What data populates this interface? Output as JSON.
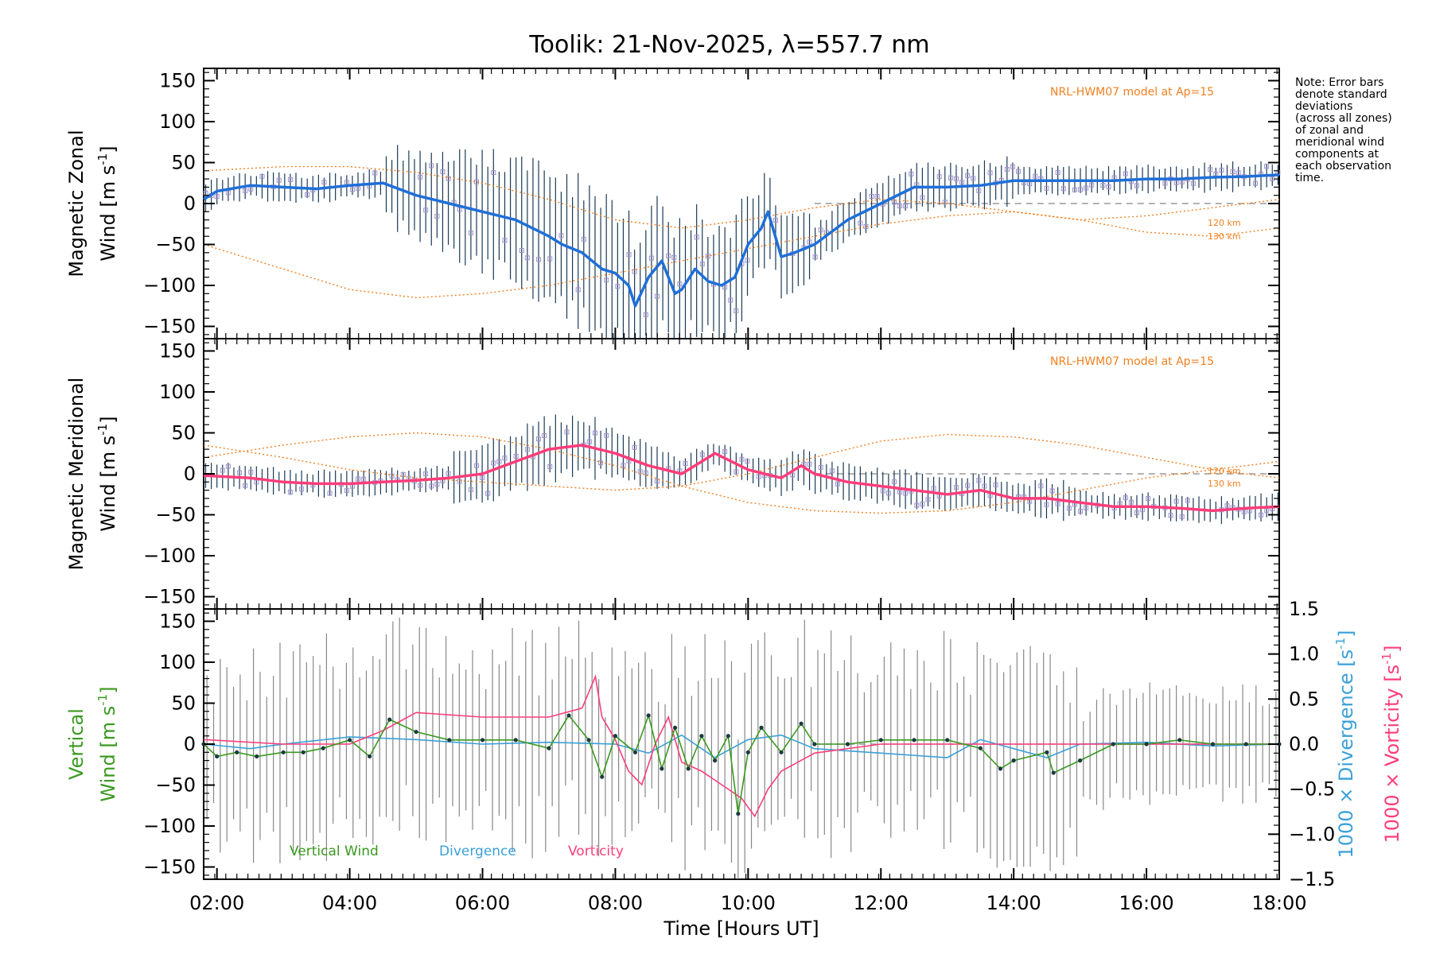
{
  "chart_data": {
    "type": "line",
    "title": "Toolik: 21-Nov-2025, λ=557.7 nm",
    "xlabel": "Time [Hours UT]",
    "x_ticks": [
      "02:00",
      "04:00",
      "06:00",
      "08:00",
      "10:00",
      "12:00",
      "14:00",
      "16:00",
      "18:00"
    ],
    "xlim": [
      1.8,
      18.0
    ],
    "note_lines": [
      "Note: Error bars",
      "denote standard",
      "deviations",
      "(across all zones)",
      "of zonal and",
      "meridional wind",
      "components at",
      "each observation",
      "time."
    ],
    "colors": {
      "zonal": "#1f6fd8",
      "meridional": "#ff3d7a",
      "vertical": "#3a9a20",
      "divergence": "#3aa0d8",
      "vorticity": "#ff3d7a",
      "model": "#f08020",
      "errorbar": "#1a3a55",
      "scatter": "#a090d0",
      "grey": "#888888"
    },
    "panels": [
      {
        "id": "zonal",
        "ylabel_line1": "Magnetic Zonal",
        "ylabel_line2": "Wind [m s",
        "ylabel_sup": "-1",
        "ylabel_close": "]",
        "ylim": [
          -165,
          165
        ],
        "y_ticks": [
          "150",
          "100",
          "50",
          "0",
          "−50",
          "−100",
          "−150"
        ],
        "model_label": "NRL-HWM07 model at Ap=15",
        "alt_labels": [
          "120 km",
          "130 km"
        ],
        "series": [
          {
            "name": "Zonal wind (mean)",
            "x": [
              1.8,
              2.0,
              2.5,
              3.0,
              3.5,
              4.0,
              4.5,
              5.0,
              5.5,
              6.0,
              6.5,
              7.0,
              7.2,
              7.5,
              7.8,
              8.0,
              8.2,
              8.3,
              8.5,
              8.7,
              8.9,
              9.0,
              9.2,
              9.4,
              9.6,
              9.8,
              10.0,
              10.2,
              10.3,
              10.5,
              10.7,
              11.0,
              11.5,
              12.0,
              12.5,
              13.0,
              13.5,
              14.0,
              14.5,
              15.0,
              15.5,
              16.0,
              16.5,
              17.0,
              17.5,
              18.0
            ],
            "values": [
              5,
              15,
              22,
              20,
              18,
              22,
              25,
              10,
              0,
              -10,
              -20,
              -40,
              -50,
              -60,
              -80,
              -85,
              -100,
              -125,
              -90,
              -70,
              -110,
              -105,
              -80,
              -95,
              -100,
              -90,
              -50,
              -30,
              -10,
              -65,
              -60,
              -50,
              -20,
              0,
              20,
              20,
              22,
              28,
              28,
              28,
              28,
              30,
              30,
              32,
              33,
              35
            ]
          },
          {
            "name": "Model 120 km",
            "x": [
              1.8,
              3.0,
              4.0,
              5.0,
              6.0,
              7.0,
              8.0,
              9.0,
              10.0,
              11.0,
              12.0,
              13.0,
              14.0,
              15.0,
              16.0,
              17.0,
              18.0
            ],
            "values": [
              40,
              45,
              45,
              38,
              25,
              5,
              -20,
              -30,
              -20,
              -5,
              5,
              0,
              -10,
              -20,
              -15,
              -5,
              5
            ]
          },
          {
            "name": "Model 130 km",
            "x": [
              1.8,
              3.0,
              4.0,
              5.0,
              6.0,
              7.0,
              8.0,
              9.0,
              10.0,
              11.0,
              12.0,
              13.0,
              14.0,
              15.0,
              16.0,
              17.0,
              18.0
            ],
            "values": [
              -50,
              -80,
              -105,
              -115,
              -110,
              -100,
              -85,
              -70,
              -55,
              -40,
              -25,
              -15,
              -10,
              -20,
              -35,
              -40,
              -30
            ]
          }
        ]
      },
      {
        "id": "meridional",
        "ylabel_line1": "Magnetic Meridional",
        "ylabel_line2": "Wind [m s",
        "ylabel_sup": "-1",
        "ylabel_close": "]",
        "ylim": [
          -165,
          165
        ],
        "y_ticks": [
          "150",
          "100",
          "50",
          "0",
          "−50",
          "−100",
          "−150"
        ],
        "model_label": "NRL-HWM07 model at Ap=15",
        "alt_labels": [
          "120 km",
          "130 km"
        ],
        "series": [
          {
            "name": "Meridional wind (mean)",
            "x": [
              1.8,
              2.5,
              3.0,
              3.5,
              4.0,
              4.5,
              5.0,
              5.5,
              6.0,
              6.5,
              7.0,
              7.5,
              8.0,
              8.5,
              9.0,
              9.5,
              10.0,
              10.5,
              10.8,
              11.0,
              11.5,
              12.0,
              12.5,
              13.0,
              13.5,
              14.0,
              14.5,
              15.0,
              15.5,
              16.0,
              16.5,
              17.0,
              17.5,
              18.0
            ],
            "values": [
              -2,
              -5,
              -10,
              -12,
              -12,
              -10,
              -8,
              -5,
              0,
              15,
              30,
              35,
              25,
              10,
              0,
              25,
              5,
              -5,
              10,
              0,
              -10,
              -15,
              -20,
              -25,
              -20,
              -30,
              -30,
              -35,
              -40,
              -40,
              -42,
              -45,
              -42,
              -40
            ]
          },
          {
            "name": "Model 120 km",
            "x": [
              1.8,
              3.0,
              4.0,
              5.0,
              6.0,
              7.0,
              8.0,
              9.0,
              10.0,
              11.0,
              12.0,
              13.0,
              14.0,
              15.0,
              16.0,
              17.0,
              18.0
            ],
            "values": [
              35,
              20,
              5,
              -5,
              -10,
              -15,
              -20,
              -15,
              0,
              20,
              40,
              48,
              45,
              35,
              20,
              5,
              -5
            ]
          },
          {
            "name": "Model 130 km",
            "x": [
              1.8,
              3.0,
              4.0,
              5.0,
              6.0,
              7.0,
              8.0,
              9.0,
              10.0,
              11.0,
              12.0,
              13.0,
              14.0,
              15.0,
              16.0,
              17.0,
              18.0
            ],
            "values": [
              20,
              35,
              45,
              50,
              45,
              30,
              10,
              -15,
              -35,
              -45,
              -48,
              -45,
              -35,
              -20,
              -5,
              5,
              15
            ]
          }
        ]
      },
      {
        "id": "vertical",
        "ylabel_line1": "Vertical",
        "ylabel_line2": "Wind [m s",
        "ylabel_sup": "-1",
        "ylabel_close": "]",
        "ylim": [
          -165,
          165
        ],
        "y_ticks": [
          "150",
          "100",
          "50",
          "0",
          "−50",
          "−100",
          "−150"
        ],
        "right_ylim": [
          -1.5,
          1.5
        ],
        "right_ticks": [
          "1.5",
          "1.0",
          "0.5",
          "0.0",
          "−0.5",
          "−1.0",
          "−1.5"
        ],
        "right_label_div": "1000 × Divergence [s",
        "right_label_vort": "1000 × Vorticity [s",
        "right_label_sup": "-1",
        "right_label_close": "]",
        "legend": [
          "Vertical Wind",
          "Divergence",
          "Vorticity"
        ],
        "series": [
          {
            "name": "Vertical Wind",
            "x": [
              1.8,
              2.0,
              2.3,
              2.6,
              3.0,
              3.3,
              3.6,
              4.0,
              4.3,
              4.6,
              5.0,
              5.5,
              6.0,
              6.5,
              7.0,
              7.3,
              7.6,
              7.8,
              8.0,
              8.3,
              8.5,
              8.7,
              8.9,
              9.1,
              9.3,
              9.5,
              9.7,
              9.85,
              10.0,
              10.2,
              10.5,
              10.8,
              11.0,
              11.5,
              12.0,
              12.5,
              13.0,
              13.5,
              13.8,
              14.0,
              14.5,
              14.6,
              15.0,
              15.5,
              16.0,
              16.5,
              17.0,
              17.5,
              18.0
            ],
            "values": [
              0,
              -15,
              -10,
              -15,
              -10,
              -10,
              -5,
              5,
              -15,
              30,
              15,
              5,
              5,
              5,
              -5,
              35,
              5,
              -40,
              10,
              -10,
              35,
              -30,
              20,
              -30,
              10,
              -20,
              10,
              -85,
              -10,
              20,
              -10,
              25,
              0,
              0,
              5,
              5,
              5,
              -5,
              -30,
              -20,
              -10,
              -35,
              -20,
              0,
              0,
              5,
              0,
              0,
              0
            ]
          },
          {
            "name": "Divergence (×1000, right axis)",
            "x": [
              1.8,
              2.5,
              3.0,
              4.0,
              5.0,
              6.0,
              7.0,
              8.0,
              8.5,
              9.0,
              9.5,
              10.0,
              10.5,
              11.0,
              12.0,
              13.0,
              13.5,
              14.0,
              14.5,
              15.0,
              16.0,
              17.0,
              18.0
            ],
            "values": [
              0.0,
              -0.05,
              0.0,
              0.08,
              0.05,
              0.0,
              0.02,
              0.0,
              -0.1,
              0.1,
              -0.15,
              0.05,
              0.1,
              -0.05,
              -0.1,
              -0.15,
              0.05,
              -0.05,
              -0.15,
              0.0,
              0.02,
              -0.02,
              0.0
            ]
          },
          {
            "name": "Vorticity (×1000, right axis)",
            "x": [
              1.8,
              3.0,
              4.0,
              4.5,
              5.0,
              6.0,
              7.0,
              7.5,
              7.7,
              7.8,
              8.0,
              8.2,
              8.4,
              8.6,
              8.8,
              9.0,
              9.3,
              9.6,
              9.9,
              10.1,
              10.3,
              10.5,
              11.0,
              12.0,
              13.0,
              14.0,
              15.0,
              16.0,
              17.0,
              18.0
            ],
            "values": [
              0.05,
              0.0,
              0.0,
              0.15,
              0.35,
              0.3,
              0.3,
              0.4,
              0.75,
              0.3,
              0.05,
              -0.3,
              -0.45,
              0.0,
              0.3,
              -0.2,
              -0.3,
              -0.45,
              -0.6,
              -0.8,
              -0.5,
              -0.3,
              -0.1,
              0.0,
              0.0,
              0.0,
              0.0,
              0.0,
              0.0,
              0.0
            ]
          }
        ]
      }
    ]
  }
}
